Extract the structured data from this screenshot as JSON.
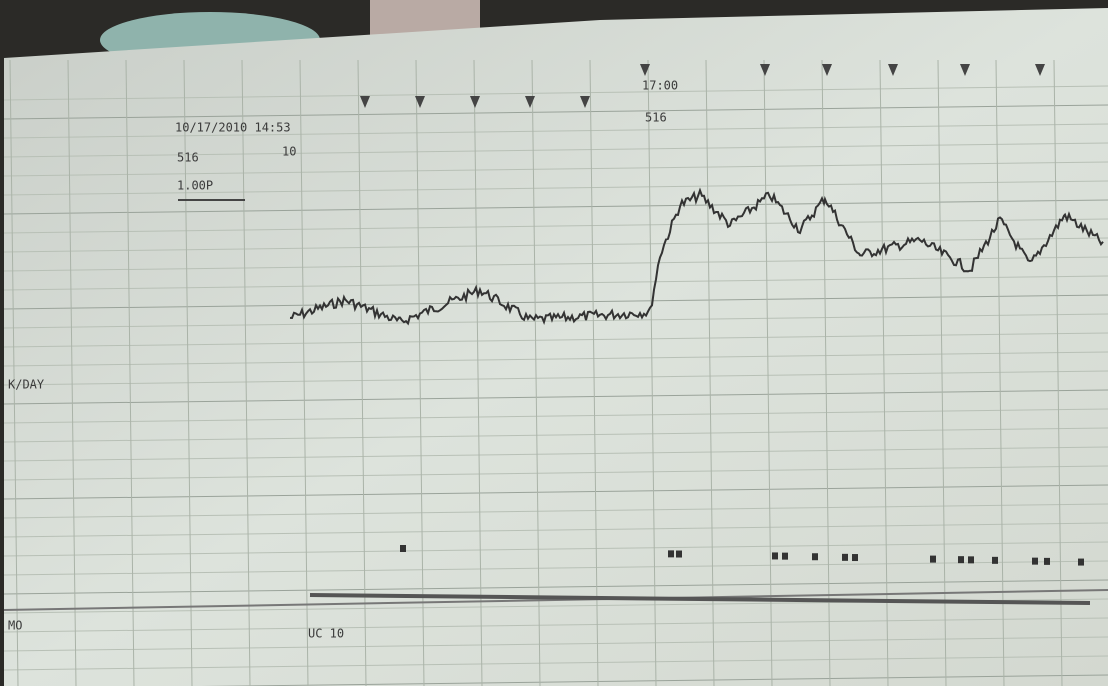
{
  "strip": {
    "start_datetime": "10/17/2010 14:53",
    "start_code": "516",
    "paper_speed": "1.00P",
    "scale_marker": "10",
    "time_mark": "17:00",
    "time_code": "516",
    "left_label": "K/DAY",
    "bottom_left_label": "MO",
    "bottom_label": "UC 10"
  }
}
